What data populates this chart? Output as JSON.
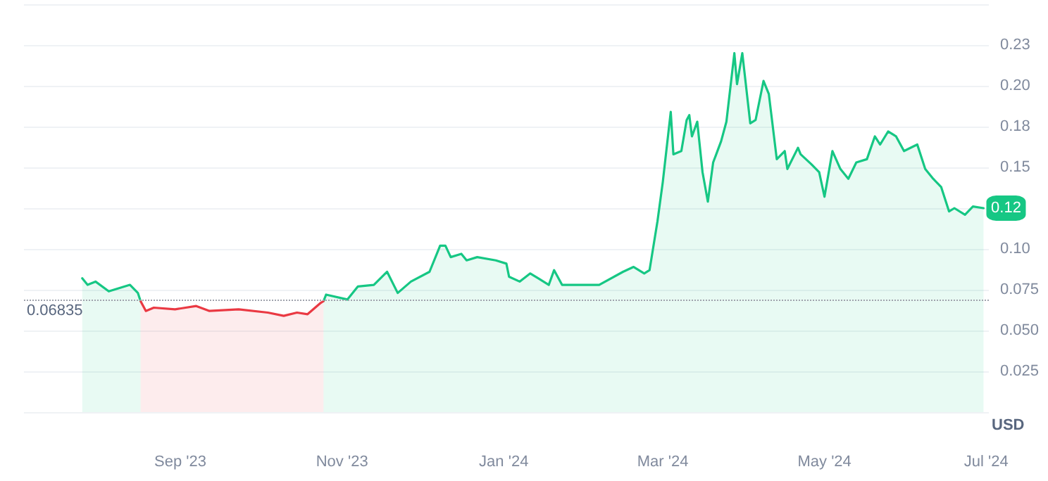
{
  "chart_data": {
    "type": "area",
    "ylabel": "USD",
    "x": [
      "2023-07-26",
      "2023-07-28",
      "2023-07-31",
      "2023-08-05",
      "2023-08-13",
      "2023-08-16",
      "2023-08-17",
      "2023-08-19",
      "2023-08-22",
      "2023-08-30",
      "2023-09-07",
      "2023-09-12",
      "2023-09-23",
      "2023-10-04",
      "2023-10-10",
      "2023-10-15",
      "2023-10-19",
      "2023-10-24",
      "2023-10-25",
      "2023-10-26",
      "2023-11-03",
      "2023-11-07",
      "2023-11-13",
      "2023-11-18",
      "2023-11-22",
      "2023-11-27",
      "2023-12-04",
      "2023-12-08",
      "2023-12-10",
      "2023-12-12",
      "2023-12-16",
      "2023-12-18",
      "2023-12-22",
      "2023-12-29",
      "2024-01-02",
      "2024-01-03",
      "2024-01-07",
      "2024-01-11",
      "2024-01-18",
      "2024-01-20",
      "2024-01-23",
      "2024-02-06",
      "2024-02-15",
      "2024-02-19",
      "2024-02-23",
      "2024-02-25",
      "2024-02-28",
      "2024-03-01",
      "2024-03-04",
      "2024-03-05",
      "2024-03-08",
      "2024-03-10",
      "2024-03-11",
      "2024-03-12",
      "2024-03-14",
      "2024-03-16",
      "2024-03-18",
      "2024-03-20",
      "2024-03-23",
      "2024-03-25",
      "2024-03-28",
      "2024-03-29",
      "2024-03-31",
      "2024-04-03",
      "2024-04-05",
      "2024-04-08",
      "2024-04-10",
      "2024-04-13",
      "2024-04-16",
      "2024-04-17",
      "2024-04-21",
      "2024-04-22",
      "2024-04-26",
      "2024-04-29",
      "2024-05-01",
      "2024-05-04",
      "2024-05-07",
      "2024-05-10",
      "2024-05-13",
      "2024-05-17",
      "2024-05-20",
      "2024-05-22",
      "2024-05-25",
      "2024-05-28",
      "2024-05-31",
      "2024-06-05",
      "2024-06-08",
      "2024-06-11",
      "2024-06-14",
      "2024-06-17",
      "2024-06-19",
      "2024-06-23",
      "2024-06-26",
      "2024-06-30"
    ],
    "series": [
      {
        "color": "#16c784",
        "values": [
          0.082,
          0.078,
          0.08,
          0.074,
          0.078,
          0.073,
          0.068,
          null,
          null,
          null,
          null,
          null,
          null,
          null,
          null,
          null,
          null,
          null,
          0.068,
          0.072,
          0.069,
          0.077,
          0.078,
          0.086,
          0.073,
          0.08,
          0.086,
          0.102,
          0.102,
          0.095,
          0.097,
          0.093,
          0.095,
          0.093,
          0.091,
          0.083,
          0.08,
          0.085,
          0.078,
          0.087,
          0.078,
          0.078,
          0.086,
          0.089,
          0.085,
          0.087,
          0.117,
          0.141,
          0.184,
          0.158,
          0.16,
          0.179,
          0.182,
          0.169,
          0.178,
          0.147,
          0.129,
          0.153,
          0.166,
          0.178,
          0.22,
          0.201,
          0.22,
          0.177,
          0.179,
          0.203,
          0.195,
          0.155,
          0.16,
          0.149,
          0.162,
          0.158,
          0.152,
          0.147,
          0.132,
          0.16,
          0.149,
          0.143,
          0.153,
          0.155,
          0.169,
          0.164,
          0.172,
          0.169,
          0.16,
          0.164,
          0.149,
          0.143,
          0.138,
          0.123,
          0.125,
          0.121,
          0.126,
          0.125
        ]
      },
      {
        "color": "#ea3943",
        "values": [
          null,
          null,
          null,
          null,
          null,
          null,
          0.068,
          0.062,
          0.064,
          0.063,
          0.065,
          0.062,
          0.063,
          0.061,
          0.059,
          0.061,
          0.06,
          0.067,
          0.068,
          null,
          null,
          null,
          null,
          null,
          null,
          null,
          null,
          null,
          null,
          null,
          null,
          null,
          null,
          null,
          null,
          null,
          null,
          null,
          null,
          null,
          null,
          null,
          null,
          null,
          null,
          null,
          null,
          null,
          null,
          null,
          null,
          null,
          null,
          null,
          null,
          null,
          null,
          null,
          null,
          null,
          null,
          null,
          null,
          null,
          null,
          null,
          null,
          null,
          null,
          null,
          null,
          null,
          null,
          null,
          null,
          null,
          null,
          null,
          null,
          null,
          null,
          null,
          null,
          null,
          null,
          null,
          null,
          null,
          null,
          null,
          null,
          null,
          null,
          null
        ]
      }
    ],
    "xlim": [
      "2023-07-04",
      "2024-07-02"
    ],
    "xticks": [
      {
        "value": "2023-09-01",
        "label": "Sep '23"
      },
      {
        "value": "2023-11-01",
        "label": "Nov '23"
      },
      {
        "value": "2024-01-01",
        "label": "Jan '24"
      },
      {
        "value": "2024-03-01",
        "label": "Mar '24"
      },
      {
        "value": "2024-05-01",
        "label": "May '24"
      },
      {
        "value": "2024-07-01",
        "label": "Jul '24"
      }
    ],
    "ylim": [
      0,
      0.25
    ],
    "yticks": [
      {
        "value": 0,
        "label": null
      },
      {
        "value": 0.025,
        "label": "0.025"
      },
      {
        "value": 0.05,
        "label": "0.050"
      },
      {
        "value": 0.075,
        "label": "0.075"
      },
      {
        "value": 0.1,
        "label": "0.10"
      },
      {
        "value": 0.125,
        "label": null
      },
      {
        "value": 0.15,
        "label": "0.15"
      },
      {
        "value": 0.175,
        "label": "0.18"
      },
      {
        "value": 0.2,
        "label": "0.20"
      },
      {
        "value": 0.225,
        "label": "0.23"
      },
      {
        "value": 0.25,
        "label": null
      }
    ],
    "ref_lines": [
      {
        "axis": "y",
        "value": 0.06835,
        "label": "0.06835",
        "color": "#a0a3ad",
        "line_style": "dotted"
      }
    ],
    "annotations": [
      {
        "text": "0.12",
        "x": "2024-06-30",
        "y": 0.125
      }
    ],
    "grid": "y",
    "marker": "none",
    "line_style": "solid"
  }
}
